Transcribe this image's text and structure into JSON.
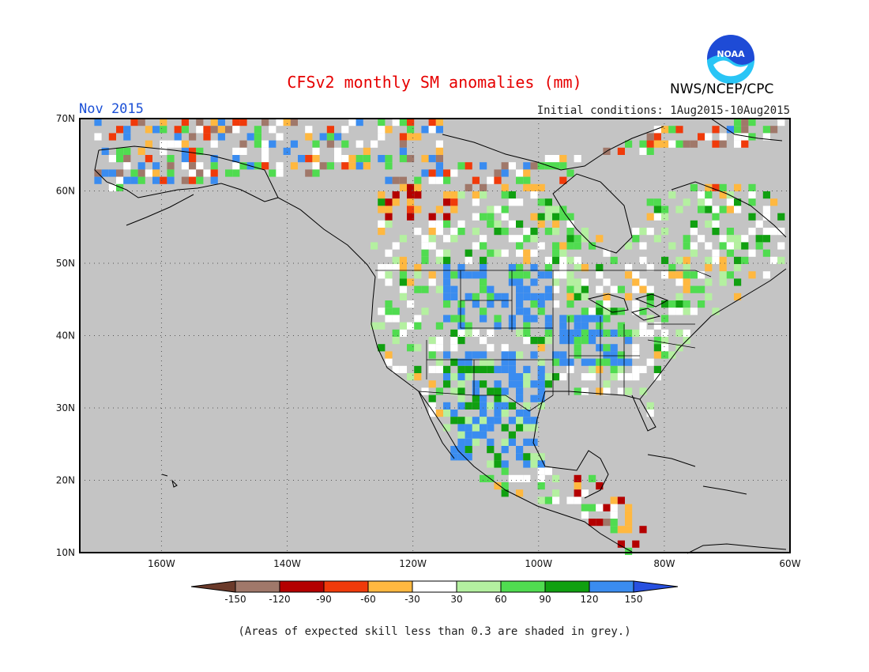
{
  "title": "CFSv2 monthly SM anomalies (mm)",
  "period_label": "Nov 2015",
  "initial_conditions": "Initial conditions: 1Aug2015-10Aug2015",
  "agency": "NWS/NCEP/CPC",
  "logo_text": "NOAA",
  "footnote": "(Areas of expected skill less than 0.3 are shaded in grey.)",
  "map": {
    "lon_range": [
      -173,
      -60
    ],
    "lat_range": [
      10,
      70
    ],
    "lat_ticks": [
      {
        "value": 70,
        "label": "70N"
      },
      {
        "value": 60,
        "label": "60N"
      },
      {
        "value": 50,
        "label": "50N"
      },
      {
        "value": 40,
        "label": "40N"
      },
      {
        "value": 30,
        "label": "30N"
      },
      {
        "value": 20,
        "label": "20N"
      },
      {
        "value": 10,
        "label": "10N"
      }
    ],
    "lon_ticks": [
      {
        "value": -160,
        "label": "160W"
      },
      {
        "value": -140,
        "label": "140W"
      },
      {
        "value": -120,
        "label": "120W"
      },
      {
        "value": -100,
        "label": "100W"
      },
      {
        "value": -80,
        "label": "80W"
      },
      {
        "value": -60,
        "label": "60W"
      }
    ],
    "ocean_color": "#c4c4c4",
    "low_skill_color": "#c4c4c4"
  },
  "colorbar": {
    "bins": [
      {
        "color": "#6b3a2a"
      },
      {
        "color": "#a0786a"
      },
      {
        "color": "#b40000"
      },
      {
        "color": "#f03a0a"
      },
      {
        "color": "#ffb840"
      },
      {
        "color": "#ffffff"
      },
      {
        "color": "#b4f0a0"
      },
      {
        "color": "#50dc50"
      },
      {
        "color": "#10a010"
      },
      {
        "color": "#3a8cf0"
      },
      {
        "color": "#2850e0"
      }
    ],
    "labels": [
      "-150",
      "-120",
      "-90",
      "-60",
      "-30",
      "30",
      "60",
      "90",
      "120",
      "150"
    ]
  }
}
